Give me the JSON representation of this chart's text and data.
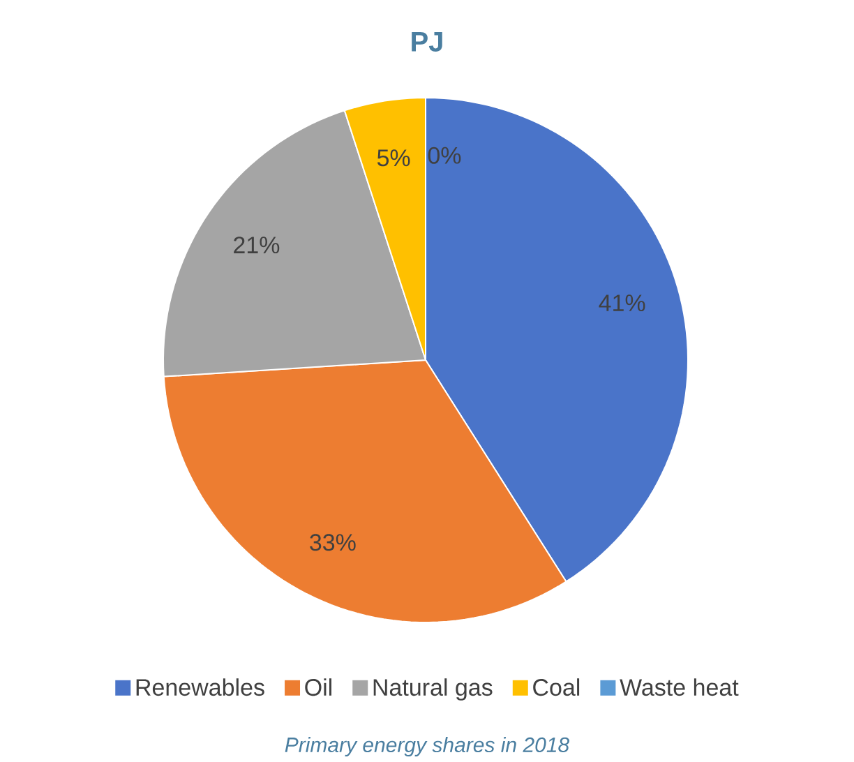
{
  "chart_data": {
    "type": "pie",
    "title": "PJ",
    "categories": [
      "Renewables",
      "Oil",
      "Natural gas",
      "Coal",
      "Waste heat"
    ],
    "values": [
      41,
      33,
      21,
      5,
      0
    ],
    "value_labels": [
      "41%",
      "33%",
      "21%",
      "5%",
      "0%"
    ],
    "colors": [
      "#4a74c9",
      "#ed7d31",
      "#a5a5a5",
      "#ffc000",
      "#5b9bd5"
    ],
    "legend": "bottom",
    "annotations": [
      "Primary energy shares in 2018"
    ]
  }
}
